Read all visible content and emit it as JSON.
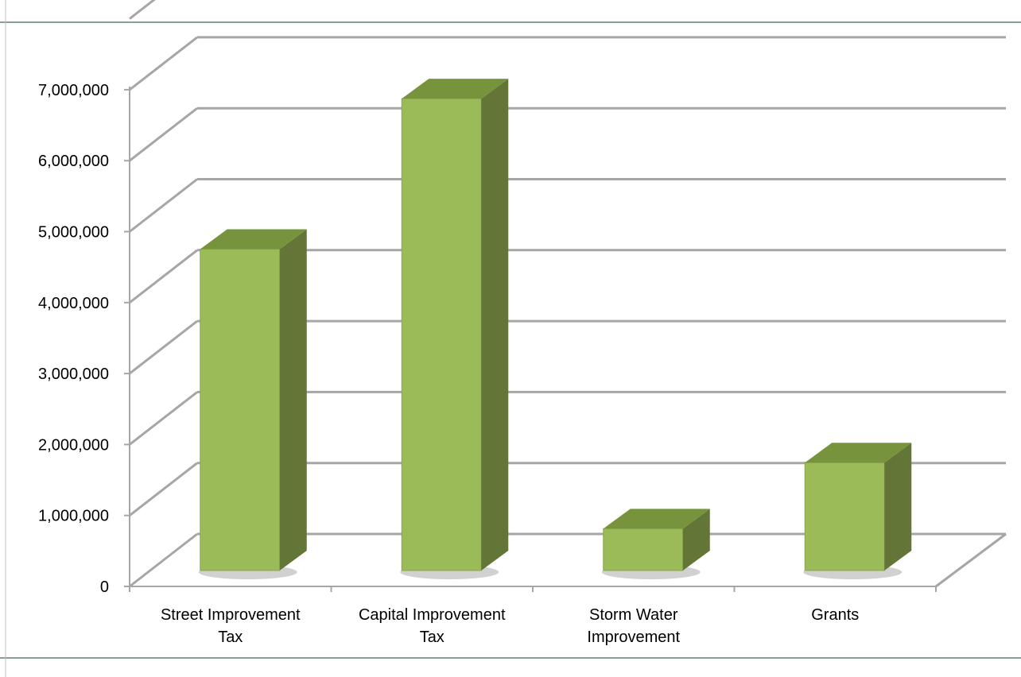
{
  "chart_data": {
    "type": "bar",
    "title": "",
    "xlabel": "",
    "ylabel": "",
    "categories": [
      [
        "Street Improvement",
        "Tax"
      ],
      [
        "Capital Improvement",
        "Tax"
      ],
      [
        "Storm Water",
        "Improvement"
      ],
      [
        "Grants"
      ]
    ],
    "series": [
      {
        "values": [
          4530000,
          6650000,
          590000,
          1520000
        ]
      }
    ],
    "ylim": [
      0,
      7000000
    ],
    "ytick_labels": [
      "0",
      "1,000,000",
      "2,000,000",
      "3,000,000",
      "4,000,000",
      "5,000,000",
      "6,000,000",
      "7,000,000"
    ],
    "grid": true,
    "legend": "none",
    "style": "3d-column",
    "colors": {
      "bar_front": "#9bbb59",
      "bar_top": "#77933c",
      "bar_side": "#647637",
      "gridline": "#a6a6a6",
      "frame": "#86a092"
    }
  }
}
